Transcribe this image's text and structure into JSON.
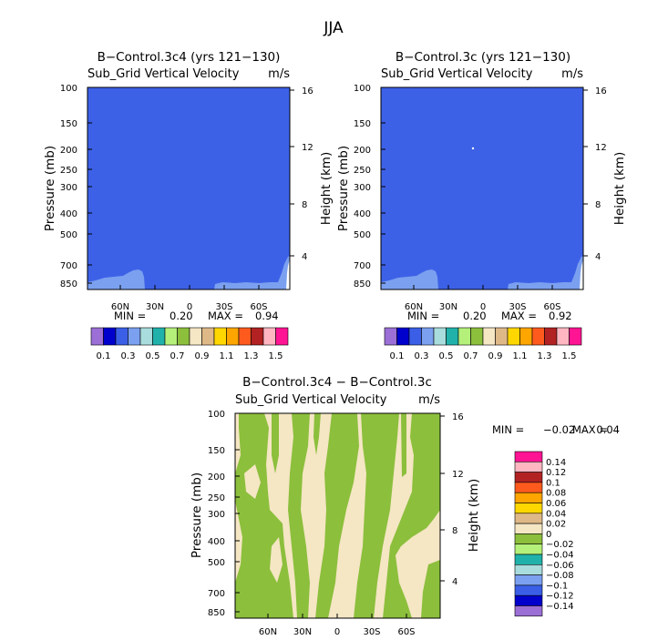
{
  "figure": {
    "title": "JJA"
  },
  "chart_data": [
    {
      "type": "heatmap",
      "title": "B−Control.3c4 (yrs 121−130)",
      "subtitle": "Sub_Grid Vertical Velocity",
      "units": "m/s",
      "ylabel": "Pressure (mb)",
      "y2label": "Height (km)",
      "yticks": [
        "100",
        "150",
        "200",
        "250",
        "300",
        "400",
        "500",
        "700",
        "850"
      ],
      "y2ticks": [
        "16",
        "12",
        "8",
        "4"
      ],
      "xticks": [
        "60N",
        "30N",
        "0",
        "30S",
        "60S"
      ],
      "stats": {
        "min_label": "MIN =",
        "min": "0.20",
        "max_label": "MAX =",
        "max": "0.94"
      },
      "colorbar": {
        "labels": [
          "0.1",
          "0.3",
          "0.5",
          "0.7",
          "0.9",
          "1.1",
          "1.3",
          "1.5"
        ],
        "colors": [
          "#9b6fd6",
          "#0000cc",
          "#3a5fe6",
          "#7ba0f0",
          "#a9dcdc",
          "#20b2aa",
          "#b4f07a",
          "#8cbf3c",
          "#f5e6c4",
          "#deb887",
          "#ffd700",
          "#ffa500",
          "#ff5a1e",
          "#b22222",
          "#ffb6c1",
          "#ff1493"
        ]
      },
      "dominant_field": {
        "color": "#3d61e6",
        "range": [
          0.2,
          0.4
        ]
      },
      "surface_patch": {
        "color": "#7ba0f0",
        "range": [
          0.4,
          0.6
        ]
      }
    },
    {
      "type": "heatmap",
      "title": "B−Control.3c (yrs 121−130)",
      "subtitle": "Sub_Grid Vertical Velocity",
      "units": "m/s",
      "ylabel": "Pressure (mb)",
      "y2label": "Height (km)",
      "yticks": [
        "100",
        "150",
        "200",
        "250",
        "300",
        "400",
        "500",
        "700",
        "850"
      ],
      "y2ticks": [
        "16",
        "12",
        "8",
        "4"
      ],
      "xticks": [
        "60N",
        "30N",
        "0",
        "30S",
        "60S"
      ],
      "stats": {
        "min_label": "MIN =",
        "min": "0.20",
        "max_label": "MAX =",
        "max": "0.92"
      },
      "colorbar": {
        "labels": [
          "0.1",
          "0.3",
          "0.5",
          "0.7",
          "0.9",
          "1.1",
          "1.3",
          "1.5"
        ],
        "colors": [
          "#9b6fd6",
          "#0000cc",
          "#3a5fe6",
          "#7ba0f0",
          "#a9dcdc",
          "#20b2aa",
          "#b4f07a",
          "#8cbf3c",
          "#f5e6c4",
          "#deb887",
          "#ffd700",
          "#ffa500",
          "#ff5a1e",
          "#b22222",
          "#ffb6c1",
          "#ff1493"
        ]
      },
      "dominant_field": {
        "color": "#3d61e6",
        "range": [
          0.2,
          0.4
        ]
      },
      "surface_patch": {
        "color": "#7ba0f0",
        "range": [
          0.4,
          0.6
        ]
      }
    },
    {
      "type": "heatmap",
      "title": "B−Control.3c4 − B−Control.3c",
      "subtitle": "Sub_Grid Vertical Velocity",
      "units": "m/s",
      "ylabel": "Pressure (mb)",
      "y2label": "Height (km)",
      "yticks": [
        "100",
        "150",
        "200",
        "250",
        "300",
        "400",
        "500",
        "700",
        "850"
      ],
      "y2ticks": [
        "16",
        "12",
        "8",
        "4"
      ],
      "xticks": [
        "60N",
        "30N",
        "0",
        "30S",
        "60S"
      ],
      "stats": {
        "min_label": "MIN =",
        "min": "−0.02",
        "max_label": "MAX =",
        "max": "0.04"
      },
      "colorbar": {
        "labels": [
          "0.14",
          "0.12",
          "0.1",
          "0.08",
          "0.06",
          "0.04",
          "0.02",
          "0",
          "−0.02",
          "−0.04",
          "−0.06",
          "−0.08",
          "−0.1",
          "−0.12",
          "−0.14"
        ],
        "colors": [
          "#ff1493",
          "#ffb6c1",
          "#b22222",
          "#ff5a1e",
          "#ffa500",
          "#ffd700",
          "#deb887",
          "#f5e6c4",
          "#8cbf3c",
          "#b4f07a",
          "#20b2aa",
          "#a9dcdc",
          "#7ba0f0",
          "#3a5fe6",
          "#0000cc",
          "#9b6fd6"
        ]
      },
      "field_colors": {
        "positive_0_to_0.02": "#f5e6c4",
        "negative_-0.02_to_0": "#8cbf3c"
      }
    }
  ]
}
